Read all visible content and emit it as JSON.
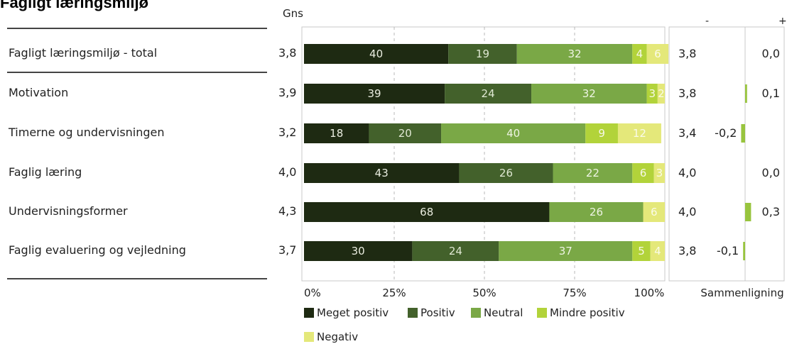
{
  "title": "Fagligt læringsmiljø",
  "gns_header": "Gns",
  "comparison_header_minus": "-",
  "comparison_header_plus": "+",
  "comparison_label": "Sammenligning",
  "colors": {
    "meget_positiv": "#1e2a12",
    "positiv": "#43612b",
    "neutral": "#7aa846",
    "mindre_positiv": "#b2d33a",
    "negativ": "#e4e87a",
    "comparison_bar": "#98c43e"
  },
  "chart_data": {
    "type": "bar",
    "orientation": "horizontal",
    "stacked": true,
    "categories": [
      "Fagligt læringsmiljø - total",
      "Motivation",
      "Timerne og undervisningen",
      "Faglig læring",
      "Undervisningsformer",
      "Faglig evaluering og vejledning"
    ],
    "series": [
      {
        "name": "Meget positiv",
        "values": [
          40,
          39,
          18,
          43,
          68,
          30
        ]
      },
      {
        "name": "Positiv",
        "values": [
          19,
          24,
          20,
          26,
          0,
          24
        ]
      },
      {
        "name": "Neutral",
        "values": [
          32,
          32,
          40,
          22,
          26,
          37
        ]
      },
      {
        "name": "Mindre positiv",
        "values": [
          4,
          3,
          9,
          6,
          0,
          5
        ]
      },
      {
        "name": "Negativ",
        "values": [
          6,
          2,
          12,
          3,
          6,
          4
        ]
      }
    ],
    "xlim": [
      0,
      100
    ],
    "xticks": [
      "0%",
      "25%",
      "50%",
      "75%",
      "100%"
    ],
    "grid": true,
    "legend": "bottom",
    "gns": [
      "3,8",
      "3,9",
      "3,2",
      "4,0",
      "4,3",
      "3,7"
    ],
    "comparison_reference": [
      "3,8",
      "3,8",
      "3,4",
      "4,0",
      "4,0",
      "3,8"
    ],
    "comparison_diff": [
      0.0,
      0.1,
      -0.2,
      0.0,
      0.3,
      -0.1
    ],
    "comparison_diff_labels": [
      "0,0",
      "0,1",
      "-0,2",
      "0,0",
      "0,3",
      "-0,1"
    ]
  }
}
